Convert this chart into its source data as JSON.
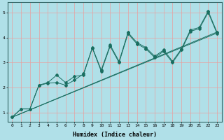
{
  "xlabel": "Humidex (Indice chaleur)",
  "bg_color": "#b0e0e8",
  "grid_color": "#e8a0a0",
  "line_color": "#1a6e60",
  "xlim": [
    -0.5,
    23.5
  ],
  "ylim": [
    0.65,
    5.4
  ],
  "xticks": [
    0,
    1,
    2,
    3,
    4,
    5,
    6,
    7,
    8,
    9,
    10,
    11,
    12,
    13,
    14,
    15,
    16,
    17,
    18,
    19,
    20,
    21,
    22,
    23
  ],
  "yticks": [
    1,
    2,
    3,
    4,
    5
  ],
  "line1_x": [
    0,
    1,
    2,
    3,
    4,
    5,
    6,
    7,
    8,
    9,
    10,
    11,
    12,
    13,
    14,
    15,
    16,
    17,
    18,
    19,
    20,
    21,
    22,
    23
  ],
  "line1_y": [
    0.82,
    1.15,
    1.15,
    2.1,
    2.2,
    2.5,
    2.2,
    2.45,
    2.5,
    3.6,
    2.7,
    3.7,
    3.05,
    4.2,
    3.8,
    3.6,
    3.25,
    3.5,
    3.05,
    3.55,
    4.3,
    4.4,
    5.05,
    4.2
  ],
  "line2_x": [
    0,
    1,
    2,
    3,
    4,
    5,
    6,
    7,
    8,
    9,
    10,
    11,
    12,
    13,
    14,
    15,
    16,
    17,
    18,
    19,
    20,
    21,
    22,
    23
  ],
  "line2_y": [
    0.82,
    1.15,
    1.15,
    2.08,
    2.18,
    2.2,
    2.1,
    2.3,
    2.55,
    3.58,
    2.65,
    3.65,
    3.0,
    4.15,
    3.75,
    3.55,
    3.2,
    3.45,
    3.0,
    3.5,
    4.25,
    4.35,
    5.0,
    4.15
  ],
  "trend1_x": [
    0,
    23
  ],
  "trend1_y": [
    0.82,
    4.18
  ],
  "trend2_x": [
    0,
    23
  ],
  "trend2_y": [
    0.82,
    4.22
  ]
}
